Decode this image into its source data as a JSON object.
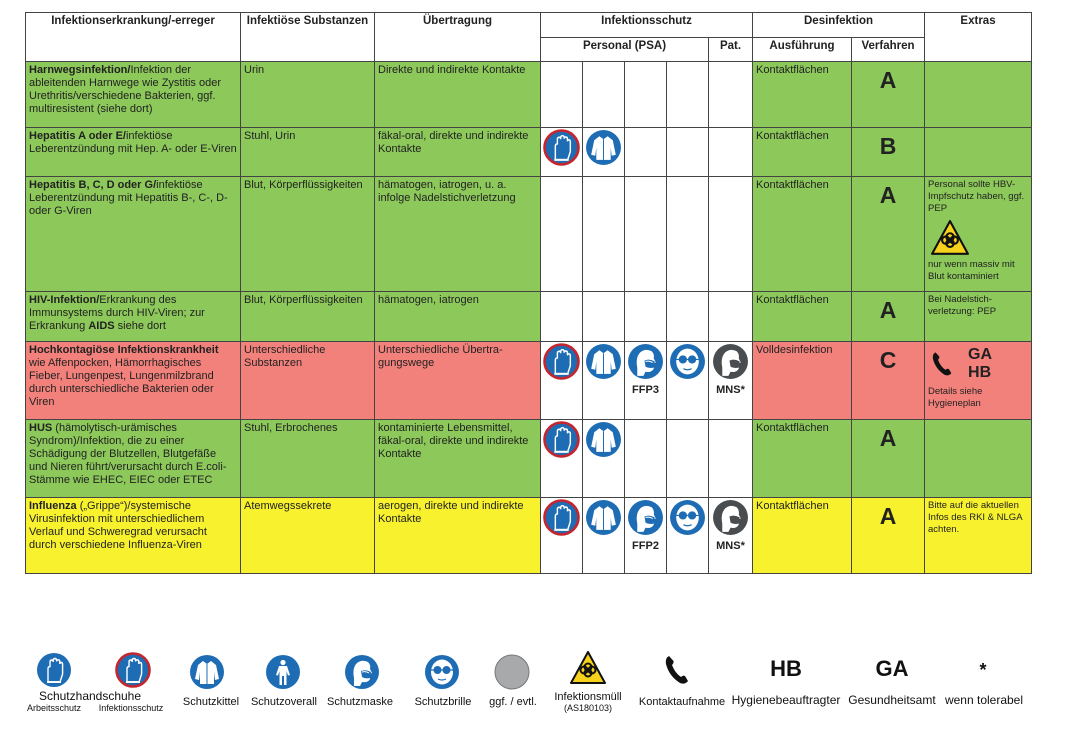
{
  "header": {
    "disease": "Infektionserkrankung/-erreger",
    "substances": "Infektiöse Substanzen",
    "transmission": "Übertragung",
    "protection": "Infektionsschutz",
    "personal": "Personal (PSA)",
    "patient": "Pat.",
    "disinfection": "Desinfektion",
    "execution": "Ausführung",
    "procedure": "Verfahren",
    "extras": "Extras"
  },
  "rows": [
    {
      "disease": [
        {
          "text": "Harnwegsinfektion/",
          "bold": true
        },
        {
          "text": "Infektion der ableitenden Harnwege wie Zystitis oder Urethritis/verschiedene Bakterien, ggf. multiresistent (siehe dort)",
          "bold": false
        }
      ],
      "substances": "Urin",
      "transmission": "Direkte und indirekte Kontakte",
      "execution": "Kontaktflächen",
      "procedure": "A"
    },
    {
      "disease": [
        {
          "text": "Hepatitis A oder E/",
          "bold": true
        },
        {
          "text": "infektiöse Leberentzündung mit Hep. A- oder E-Viren",
          "bold": false
        }
      ],
      "substances": "Stuhl, Urin",
      "transmission": "fäkal-oral, direkte und indirekte Kontakte",
      "execution": "Kontaktflächen",
      "procedure": "B"
    },
    {
      "disease": [
        {
          "text": "Hepatitis B, C, D oder G/",
          "bold": true
        },
        {
          "text": "infektiöse Leberentzündung mit Hepatitis B-, C-, D- oder G-Viren",
          "bold": false
        }
      ],
      "substances": "Blut, Körperflüssigkeiten",
      "transmission": "hämatogen, iatrogen, u. a. infolge Nadelstichverletzung",
      "execution": "Kontaktflächen",
      "procedure": "A",
      "extras": "Personal sollte HBV-Impfschutz haben, ggf. PEP",
      "extras_note": "nur wenn massiv mit Blut kontaminiert"
    },
    {
      "disease": [
        {
          "text": "HIV-Infektion/",
          "bold": true
        },
        {
          "text": "Erkrankung des Immunsystems durch HIV-Viren; zur Erkrankung ",
          "bold": false
        },
        {
          "text": "AIDS",
          "bold": true
        },
        {
          "text": " siehe dort",
          "bold": false
        }
      ],
      "substances": "Blut, Körperflüssigkeiten",
      "transmission": "hämatogen, iatrogen",
      "execution": "Kontaktflächen",
      "procedure": "A",
      "extras": "Bei Nadelstich-verletzung: PEP"
    },
    {
      "disease": [
        {
          "text": "Hochkontagiöse Infektionskrankheit",
          "bold": true
        },
        {
          "text": " wie Affenpocken, Hämorrhagisches Fieber, Lungenpest, Lungenmilzbrand durch unterschiedliche Bakterien oder Viren",
          "bold": false
        }
      ],
      "substances": "Unterschiedliche Substanzen",
      "transmission": "Unterschiedliche Übertra-gungswege",
      "mask_label": "FFP3",
      "patient_label": "MNS*",
      "execution": "Volldesinfektion",
      "procedure": "C",
      "contact_ga": "GA",
      "contact_hb": "HB",
      "extras": "Details siehe Hygieneplan"
    },
    {
      "disease": [
        {
          "text": "HUS",
          "bold": true
        },
        {
          "text": " (hämolytisch-urämisches Syndrom)/Infektion, die zu einer Schädigung der Blutzellen, Blutgefäße und Nieren führt/verursacht durch E.coli-Stämme wie EHEC, EIEC oder ETEC",
          "bold": false
        }
      ],
      "substances": "Stuhl, Erbrochenes",
      "transmission": "kontaminierte Lebensmittel, fäkal-oral, direkte und indirekte Kontakte",
      "execution": "Kontaktflächen",
      "procedure": "A"
    },
    {
      "disease": [
        {
          "text": "Influenza",
          "bold": true
        },
        {
          "text": " („Grippe“)/systemische Virusinfektion mit unterschiedlichem Verlauf und Schweregrad verursacht durch verschiedene Influenza-Viren",
          "bold": false
        }
      ],
      "substances": "Atemwegssekrete",
      "transmission": "aerogen, direkte und indirekte Kontakte",
      "mask_label": "FFP2",
      "patient_label": "MNS*",
      "execution": "Kontaktflächen",
      "procedure": "A",
      "extras": "Bitte auf die aktuellen Infos des RKI & NLGA achten."
    }
  ],
  "legend": {
    "gloves": "Schutzhandschuhe",
    "gloves_work": "Arbeitsschutz",
    "gloves_infection": "Infektionsschutz",
    "gown": "Schutzkittel",
    "overall": "Schutzoverall",
    "mask": "Schutzmaske",
    "goggles": "Schutzbrille",
    "optional": "ggf. / evtl.",
    "waste": "Infektionsmüll",
    "waste_code": "(AS180103)",
    "contact": "Kontaktaufnahme",
    "hb": "HB",
    "hb_text": "Hygienebeauftragter",
    "ga": "GA",
    "ga_text": "Gesundheitsamt",
    "star": "*",
    "star_text": "wenn tolerabel"
  }
}
